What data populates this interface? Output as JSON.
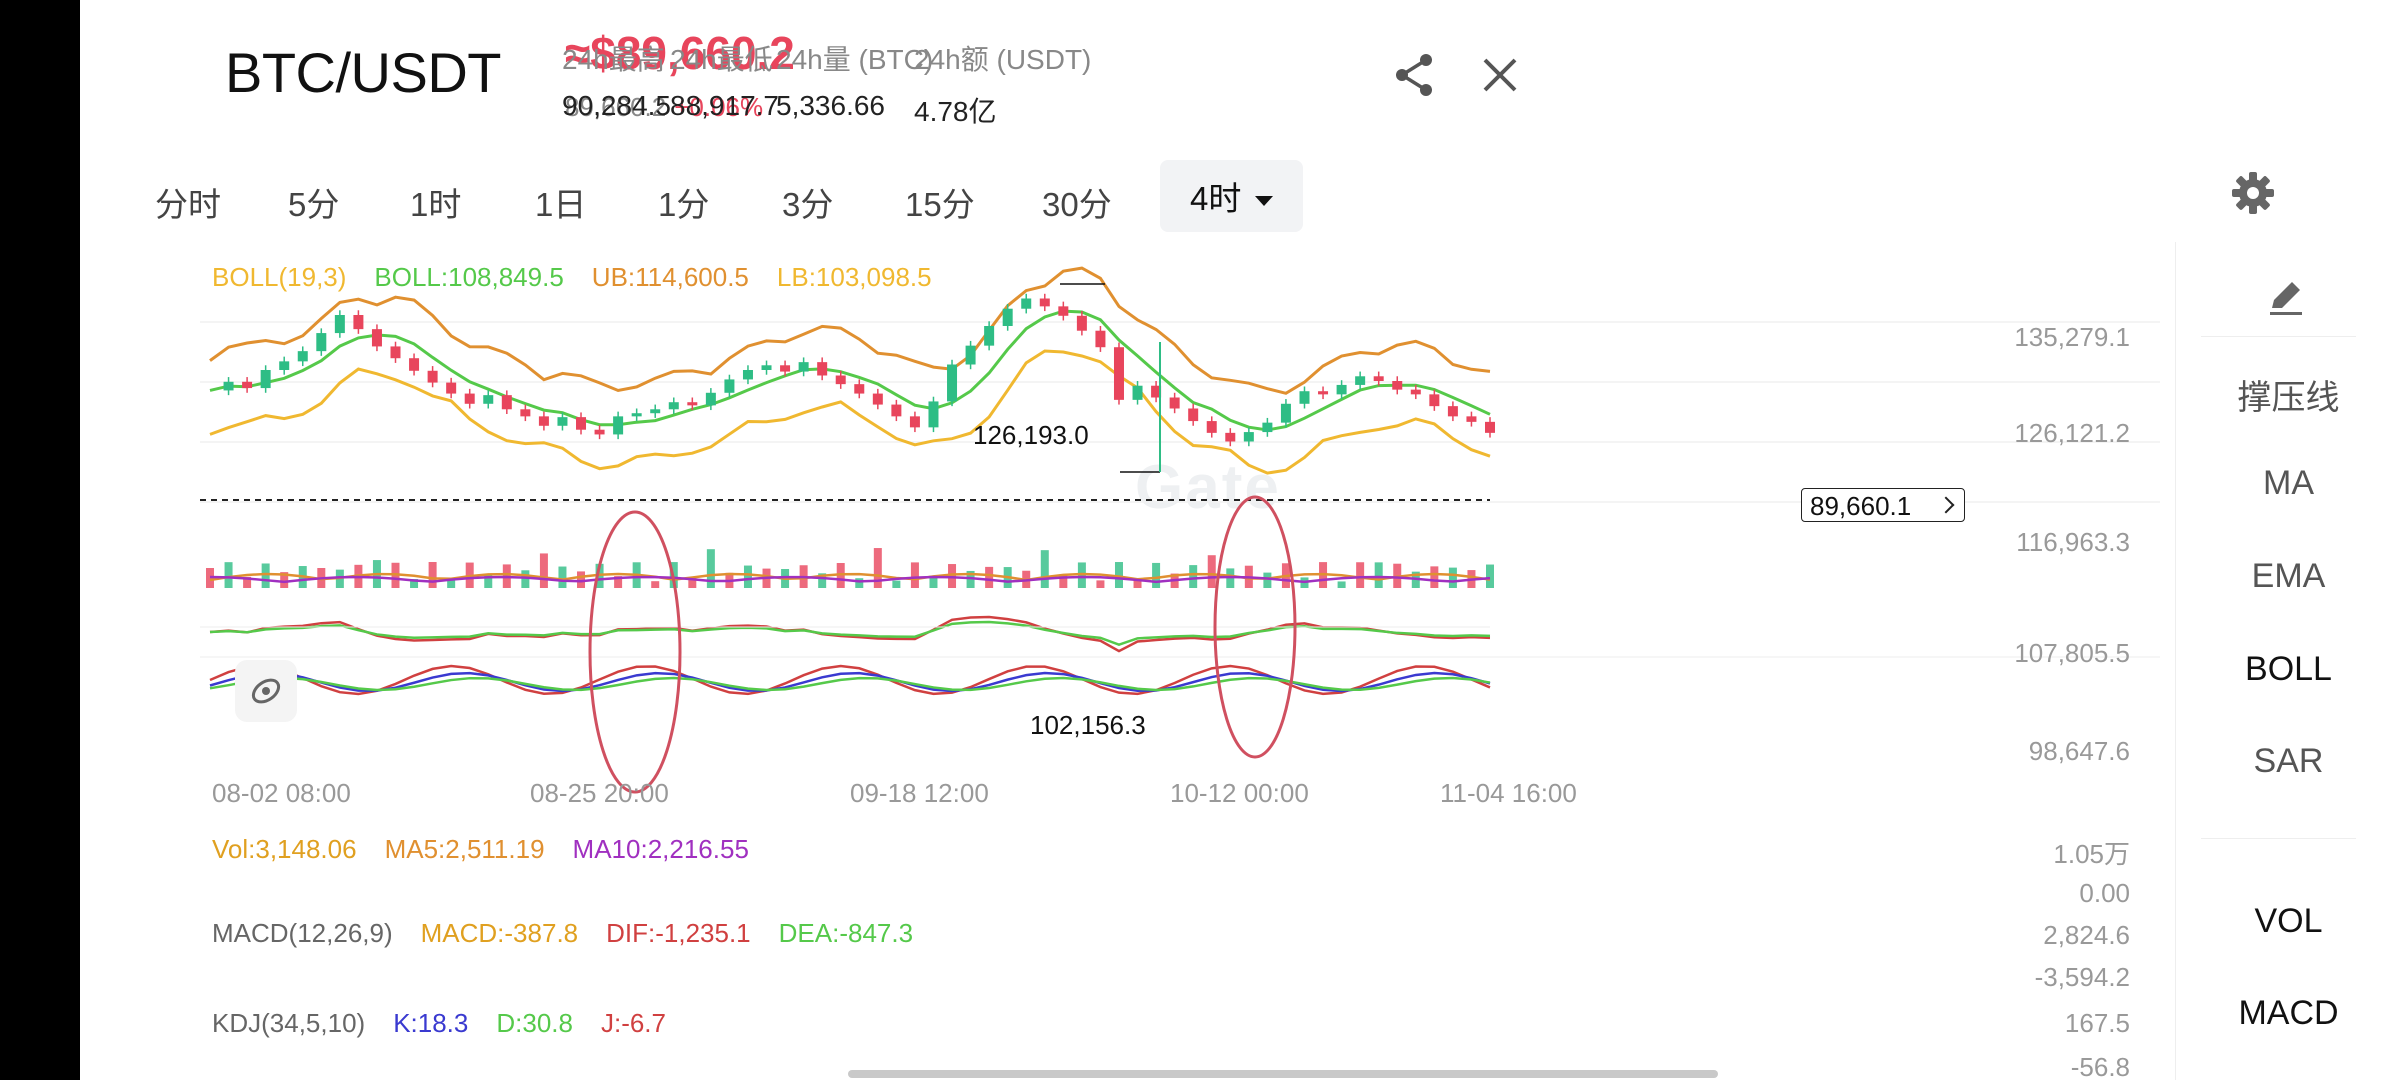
{
  "header": {
    "pair": "BTC/USDT",
    "price": "≈$89,660.2",
    "sub_price": "89,660.2",
    "change_pct": "+0.06%",
    "stats": [
      {
        "label": "24h最高",
        "value": "90,284.5"
      },
      {
        "label": "24h最低",
        "value": "88,917.7"
      },
      {
        "label": "24h量 (BTC)",
        "value": "5,336.66"
      },
      {
        "label": "24h额 (USDT)",
        "value": "4.78亿"
      }
    ],
    "share_icon": "share-icon",
    "close_icon": "close-icon"
  },
  "tabs": [
    {
      "label": "分时"
    },
    {
      "label": "5分"
    },
    {
      "label": "1时"
    },
    {
      "label": "1日"
    },
    {
      "label": "1分"
    },
    {
      "label": "3分"
    },
    {
      "label": "15分"
    },
    {
      "label": "30分"
    },
    {
      "label": "4时",
      "active": true
    }
  ],
  "settings_icon": "gear-icon",
  "indicators": {
    "boll": {
      "name": "BOLL(19,3)",
      "mid": "BOLL:108,849.5",
      "ub": "UB:114,600.5",
      "lb": "LB:103,098.5"
    },
    "vol": {
      "name": "Vol:3,148.06",
      "ma5": "MA5:2,511.19",
      "ma10": "MA10:2,216.55"
    },
    "macd": {
      "name": "MACD(12,26,9)",
      "macd": "MACD:-387.8",
      "dif": "DIF:-1,235.1",
      "dea": "DEA:-847.3"
    },
    "kdj": {
      "name": "KDJ(34,5,10)",
      "k": "K:18.3",
      "d": "D:30.8",
      "j": "J:-6.7"
    }
  },
  "main_axis": [
    "135,279.1",
    "126,121.2",
    "116,963.3",
    "107,805.5",
    "98,647.6"
  ],
  "vol_axis": [
    "1.05万",
    "0.00"
  ],
  "macd_axis": [
    "2,824.6",
    "-3,594.2"
  ],
  "kdj_axis": [
    "167.5",
    "-56.8"
  ],
  "time_axis": [
    "08-02 08:00",
    "08-25 20:00",
    "09-18 12:00",
    "10-12 00:00",
    "11-04 16:00"
  ],
  "annotations": {
    "high": "126,193.0",
    "low": "102,156.3",
    "last_price": "89,660.1"
  },
  "watermark": "Gate",
  "side_tools": [
    "撑压线",
    "MA",
    "EMA",
    "BOLL",
    "SAR",
    "VOL",
    "MACD"
  ],
  "side_active": "BOLL",
  "colors": {
    "up": "#2ebd85",
    "down": "#e8455c",
    "boll_mid": "#55c94a",
    "boll_ub": "#e09030",
    "boll_lb": "#f0b830",
    "accent": "#e8455c"
  },
  "chart_data": {
    "type": "candlestick",
    "x_range": [
      "08-02 08:00",
      "11-04 16:00"
    ],
    "y_range": [
      98647.6,
      135279.1
    ],
    "marked_high": 126193.0,
    "marked_low": 102156.3,
    "last_price": 89660.1,
    "close_series": [
      114200,
      115300,
      114500,
      116800,
      117900,
      119200,
      121500,
      123800,
      122000,
      119800,
      118300,
      116700,
      115200,
      113800,
      112500,
      113600,
      111800,
      110900,
      109700,
      110800,
      109200,
      108600,
      110900,
      111300,
      111800,
      112700,
      112300,
      113900,
      115600,
      116800,
      117400,
      116600,
      117800,
      116100,
      115000,
      113800,
      112400,
      110900,
      109500,
      112800,
      117500,
      119900,
      122400,
      124600,
      125900,
      124900,
      123700,
      121800,
      119700,
      113000,
      114800,
      113300,
      111900,
      110300,
      108800,
      107700,
      108900,
      110100,
      112500,
      114100,
      113700,
      114900,
      116000,
      115400,
      114300,
      113700,
      112200,
      110900,
      110200,
      108800
    ]
  }
}
